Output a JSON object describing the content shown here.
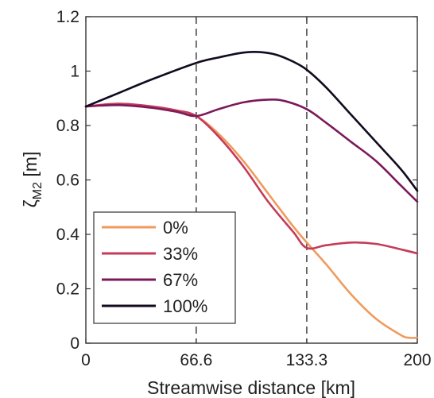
{
  "chart_data": {
    "type": "line",
    "title": "",
    "xlabel": "Streamwise distance [km]",
    "ylabel_main": "ζ",
    "ylabel_sub": "M2",
    "ylabel_unit": " [m]",
    "xlim": [
      0,
      200
    ],
    "ylim": [
      0,
      1.2
    ],
    "xticks": [
      0,
      66.6,
      133.3,
      200
    ],
    "xtick_labels": [
      "0",
      "66.6",
      "133.3",
      "200"
    ],
    "yticks": [
      0,
      0.2,
      0.4,
      0.6,
      0.8,
      1,
      1.2
    ],
    "ytick_labels": [
      "0",
      "0.2",
      "0.4",
      "0.6",
      "0.8",
      "1",
      "1.2"
    ],
    "vlines": [
      66.6,
      133.3
    ],
    "grid": false,
    "legend_position": "bottom-left",
    "series": [
      {
        "name": "0%",
        "color": "#f09a5c",
        "x": [
          0,
          20,
          40,
          55,
          66.6,
          80,
          95,
          110,
          125,
          133.3,
          145,
          160,
          175,
          190,
          195,
          200
        ],
        "y": [
          0.87,
          0.88,
          0.87,
          0.855,
          0.835,
          0.77,
          0.67,
          0.55,
          0.43,
          0.37,
          0.29,
          0.18,
          0.09,
          0.03,
          0.02,
          0.02
        ]
      },
      {
        "name": "33%",
        "color": "#c53b5a",
        "x": [
          0,
          20,
          40,
          55,
          66.6,
          80,
          95,
          110,
          125,
          133.3,
          145,
          160,
          175,
          190,
          200
        ],
        "y": [
          0.87,
          0.88,
          0.87,
          0.855,
          0.835,
          0.76,
          0.65,
          0.52,
          0.41,
          0.35,
          0.36,
          0.37,
          0.365,
          0.345,
          0.33
        ]
      },
      {
        "name": "67%",
        "color": "#7a1a5a",
        "x": [
          0,
          20,
          40,
          55,
          66.6,
          80,
          95,
          110,
          120,
          133.3,
          145,
          160,
          175,
          190,
          200
        ],
        "y": [
          0.87,
          0.875,
          0.865,
          0.85,
          0.835,
          0.86,
          0.885,
          0.895,
          0.89,
          0.86,
          0.81,
          0.74,
          0.67,
          0.58,
          0.52
        ]
      },
      {
        "name": "100%",
        "color": "#120a1e",
        "x": [
          0,
          20,
          40,
          66.6,
          80,
          95,
          105,
          115,
          125,
          133.3,
          145,
          160,
          175,
          190,
          200
        ],
        "y": [
          0.87,
          0.92,
          0.97,
          1.03,
          1.05,
          1.068,
          1.07,
          1.06,
          1.035,
          1.005,
          0.94,
          0.84,
          0.74,
          0.64,
          0.56
        ]
      }
    ]
  }
}
